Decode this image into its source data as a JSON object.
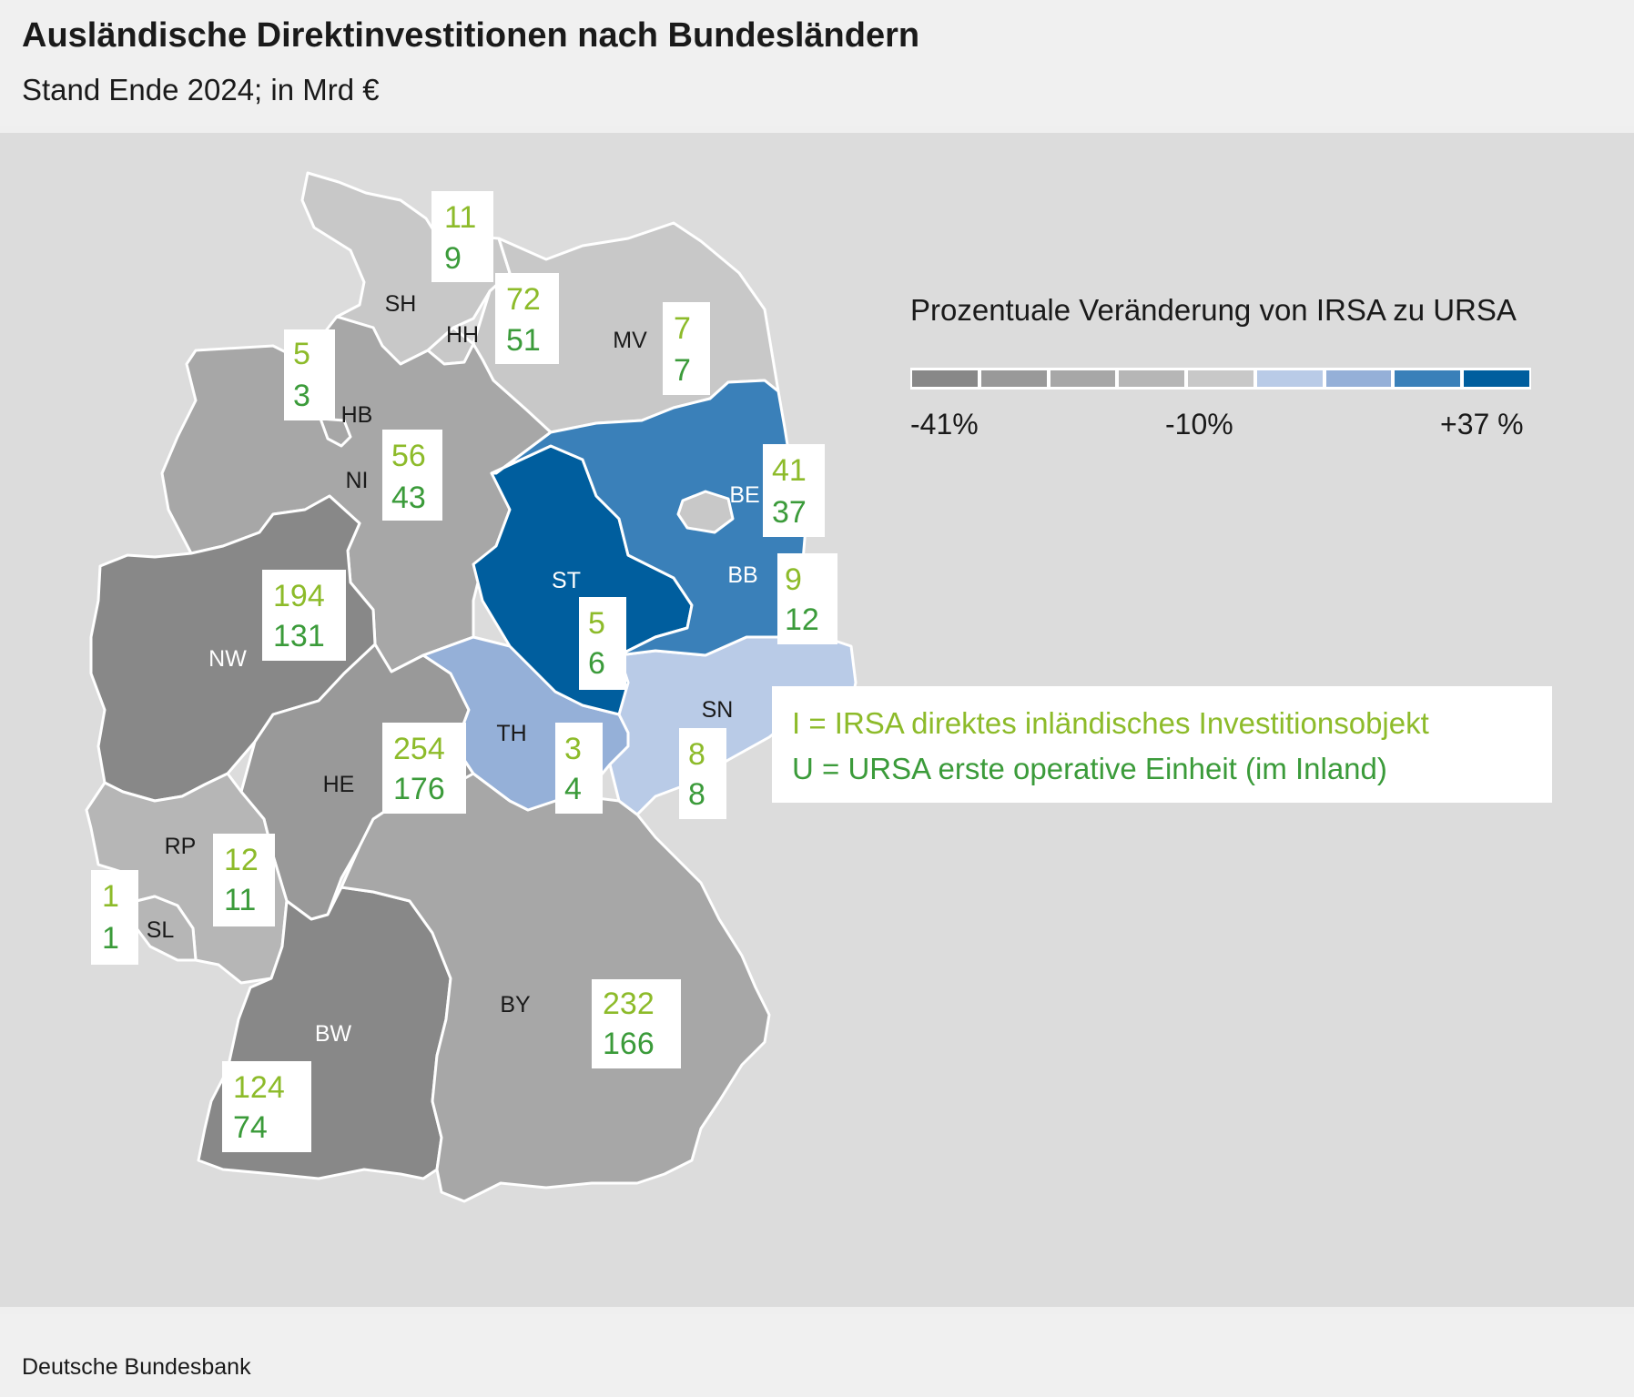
{
  "header": {
    "title": "Ausländische Direktinvestitionen nach Bundesländern",
    "subtitle": "Stand Ende 2024; in Mrd €"
  },
  "footer": {
    "source": "Deutsche Bundesbank"
  },
  "colors": {
    "scale": [
      "#888888",
      "#999999",
      "#a7a7a7",
      "#b6b6b6",
      "#c8c8c8",
      "#b9cbe7",
      "#95b0d8",
      "#3a80b9",
      "#005e9e"
    ],
    "irsa_text": "#8dbb2a",
    "ursa_text": "#3b9b3a",
    "border": "#ffffff"
  },
  "legend": {
    "title": "Prozentuale Veränderung von IRSA zu URSA",
    "ticks": [
      "-41%",
      "-10%",
      "+37 %"
    ]
  },
  "key": {
    "irsa": "I   = IRSA direktes inländisches Investitionsobjekt",
    "ursa": "U = URSA erste operative Einheit (im Inland)"
  },
  "states": [
    {
      "code": "SH",
      "irsa": "11",
      "ursa": "9",
      "color_class": 5
    },
    {
      "code": "HH",
      "irsa": "72",
      "ursa": "51",
      "color_class": 5
    },
    {
      "code": "MV",
      "irsa": "7",
      "ursa": "7",
      "color_class": 5
    },
    {
      "code": "HB",
      "irsa": "5",
      "ursa": "3",
      "color_class": 3
    },
    {
      "code": "NI",
      "irsa": "56",
      "ursa": "43",
      "color_class": 3
    },
    {
      "code": "BE",
      "irsa": "41",
      "ursa": "37",
      "color_class": 5
    },
    {
      "code": "BB",
      "irsa": "9",
      "ursa": "12",
      "color_class": 8
    },
    {
      "code": "ST",
      "irsa": "5",
      "ursa": "6",
      "color_class": 9
    },
    {
      "code": "NW",
      "irsa": "194",
      "ursa": "131",
      "color_class": 1
    },
    {
      "code": "SN",
      "irsa": "8",
      "ursa": "8",
      "color_class": 6
    },
    {
      "code": "TH",
      "irsa": "3",
      "ursa": "4",
      "color_class": 7
    },
    {
      "code": "HE",
      "irsa": "254",
      "ursa": "176",
      "color_class": 2
    },
    {
      "code": "RP",
      "irsa": "12",
      "ursa": "11",
      "color_class": 4
    },
    {
      "code": "SL",
      "irsa": "1",
      "ursa": "1",
      "color_class": 4
    },
    {
      "code": "BY",
      "irsa": "232",
      "ursa": "166",
      "color_class": 3
    },
    {
      "code": "BW",
      "irsa": "124",
      "ursa": "74",
      "color_class": 1
    }
  ]
}
